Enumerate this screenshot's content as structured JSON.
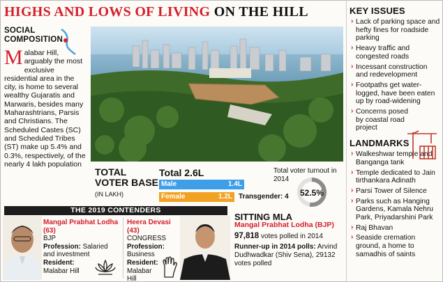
{
  "title": {
    "part1": "HIGHS AND LOWS OF LIVING",
    "part2": "ON THE HILL"
  },
  "social": {
    "heading_line1": "SOCIAL",
    "heading_line2": "COMPOSITION",
    "dropcap": "M",
    "text": "alabar Hill, arguably the most exclusive residential area in the city, is home to several wealthy Gujaratis and Marwaris, besides many Maharashtrians, Parsis and Christians. The Scheduled Castes (SC) and Scheduled Tribes (ST) make up 5.4% and 0.3%, respectively, of the nearly 4 lakh population"
  },
  "key_issues": {
    "heading": "KEY ISSUES",
    "items": [
      "Lack of parking space and hefty fines for roadside parking",
      "Heavy traffic and congested roads",
      "Incessant construction and redevelopment",
      "Footpaths get water-logged, have been eaten up by road-widening",
      "Concerns posed by coastal road project"
    ]
  },
  "landmarks": {
    "heading": "LANDMARKS",
    "items": [
      "Walkeshwar temple and Banganga tank",
      "Temple dedicated to Jain tirthankara Adinath",
      "Parsi Tower of Silence",
      "Parks such as Hanging Gardens, Kamala Nehru Park, Priyadarshini Park",
      "Raj Bhavan",
      "Seaside cremation ground, a home to samadhis of saints"
    ]
  },
  "voter_base": {
    "heading_line1": "TOTAL",
    "heading_line2": "VOTER BASE",
    "unit": "(IN LAKH)",
    "total_label": "Total",
    "total_value": "2.6L",
    "male_label": "Male",
    "male_value": "1.4L",
    "female_label": "Female",
    "female_value": "1.2L",
    "transgender": "Transgender: 4",
    "turnout_label": "Total voter turnout in 2014",
    "turnout_value": "52.5%",
    "turnout_fraction": 0.525
  },
  "contenders": {
    "heading": "THE 2019 CONTENDERS",
    "c1": {
      "name": "Mangal Prabhat Lodha (63)",
      "party": "BJP",
      "profession_label": "Profession:",
      "profession": "Salaried and investment",
      "resident_label": "Resident:",
      "resident": "Malabar Hill"
    },
    "c2": {
      "name": "Heera Devasi (43)",
      "party": "CONGRESS",
      "profession_label": "Profession:",
      "profession": "Business",
      "resident_label": "Resident:",
      "resident": "Malabar Hill"
    }
  },
  "mla": {
    "heading": "SITTING MLA",
    "name": "Mangal Prabhat Lodha (BJP)",
    "votes_value": "97,818",
    "votes_text": "votes polled in 2014",
    "runner_label": "Runner-up in 2014 polls:",
    "runner_text": "Arvind Dudhwadkar (Shiv Sena), 29132 votes polled"
  },
  "colors": {
    "accent": "#d4202c",
    "male": "#3f9ee8",
    "female": "#f2a222"
  },
  "icons": [
    "map-marker-icon",
    "crane-icon",
    "lotus-icon",
    "hand-icon"
  ]
}
